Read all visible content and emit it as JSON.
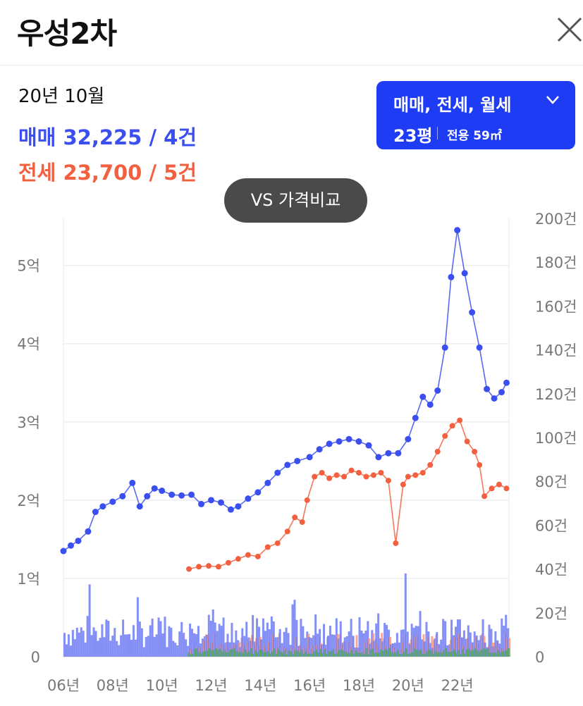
{
  "header": {
    "title": "우성2차",
    "close_icon": "close-icon"
  },
  "summary": {
    "period": "20년 10월",
    "sale_label": "매매 32,225 / 4건",
    "lease_label": "전세 23,700 / 5건"
  },
  "filter": {
    "trade_types": "매매, 전세, 월세",
    "size_label": "23평",
    "area_label": "전용 59㎡",
    "chevron_icon": "chevron-down-icon"
  },
  "compare_button": {
    "label": "VS 가격비교"
  },
  "colors": {
    "sale": "#3b4ff0",
    "lease": "#f2603f",
    "accent": "#1f3cf5",
    "volume_sale": "#6f7cf5",
    "volume_lease": "#f59480",
    "volume_rent": "#4caf50"
  },
  "chart_data": {
    "type": "line",
    "x_tick_labels": [
      "06년",
      "08년",
      "10년",
      "12년",
      "14년",
      "16년",
      "18년",
      "20년",
      "22년"
    ],
    "x_range": [
      2006,
      2024.1
    ],
    "y_left_ticks": [
      "0",
      "1억",
      "2억",
      "3억",
      "4억",
      "5억"
    ],
    "y_left_range": [
      0,
      5.6
    ],
    "y_right_ticks": [
      "0",
      "20건",
      "40건",
      "60건",
      "80건",
      "100건",
      "120건",
      "140건",
      "160건",
      "180건",
      "200건"
    ],
    "y_right_range": [
      0,
      200
    ],
    "grid": true,
    "series": [
      {
        "name": "매매",
        "axis": "left",
        "x": [
          2006.0,
          2006.3,
          2006.6,
          2007.0,
          2007.3,
          2007.6,
          2008.0,
          2008.4,
          2008.8,
          2009.1,
          2009.4,
          2009.7,
          2010.0,
          2010.4,
          2010.8,
          2011.2,
          2011.6,
          2012.0,
          2012.4,
          2012.8,
          2013.1,
          2013.5,
          2013.9,
          2014.3,
          2014.7,
          2015.1,
          2015.5,
          2016.0,
          2016.4,
          2016.8,
          2017.2,
          2017.6,
          2018.0,
          2018.4,
          2018.8,
          2019.2,
          2019.6,
          2020.0,
          2020.3,
          2020.6,
          2020.9,
          2021.2,
          2021.5,
          2021.75,
          2022.0,
          2022.3,
          2022.6,
          2022.9,
          2023.2,
          2023.5,
          2023.8,
          2024.0
        ],
        "values": [
          1.35,
          1.42,
          1.48,
          1.6,
          1.85,
          1.92,
          1.98,
          2.05,
          2.22,
          1.92,
          2.05,
          2.15,
          2.12,
          2.07,
          2.06,
          2.07,
          1.95,
          2.0,
          1.97,
          1.88,
          1.92,
          2.02,
          2.1,
          2.22,
          2.35,
          2.45,
          2.5,
          2.55,
          2.65,
          2.72,
          2.75,
          2.78,
          2.75,
          2.7,
          2.55,
          2.6,
          2.6,
          2.78,
          3.05,
          3.32,
          3.22,
          3.4,
          3.95,
          4.85,
          5.45,
          4.9,
          4.4,
          3.95,
          3.42,
          3.3,
          3.38,
          3.5
        ]
      },
      {
        "name": "전세",
        "axis": "left",
        "x": [
          2011.1,
          2011.5,
          2011.9,
          2012.3,
          2012.7,
          2013.1,
          2013.5,
          2013.9,
          2014.3,
          2014.7,
          2015.1,
          2015.4,
          2015.7,
          2015.9,
          2016.2,
          2016.5,
          2016.8,
          2017.1,
          2017.4,
          2017.7,
          2018.0,
          2018.3,
          2018.6,
          2018.9,
          2019.2,
          2019.5,
          2019.8,
          2020.0,
          2020.3,
          2020.6,
          2020.9,
          2021.2,
          2021.5,
          2021.8,
          2022.1,
          2022.4,
          2022.7,
          2022.9,
          2023.1,
          2023.4,
          2023.7,
          2024.0
        ],
        "values": [
          1.12,
          1.15,
          1.16,
          1.15,
          1.2,
          1.25,
          1.3,
          1.28,
          1.4,
          1.45,
          1.6,
          1.78,
          1.72,
          2.0,
          2.3,
          2.35,
          2.28,
          2.32,
          2.3,
          2.38,
          2.35,
          2.3,
          2.32,
          2.35,
          2.25,
          1.45,
          2.2,
          2.3,
          2.32,
          2.35,
          2.45,
          2.62,
          2.82,
          2.95,
          3.02,
          2.75,
          2.62,
          2.45,
          2.05,
          2.15,
          2.2,
          2.15
        ]
      }
    ]
  }
}
